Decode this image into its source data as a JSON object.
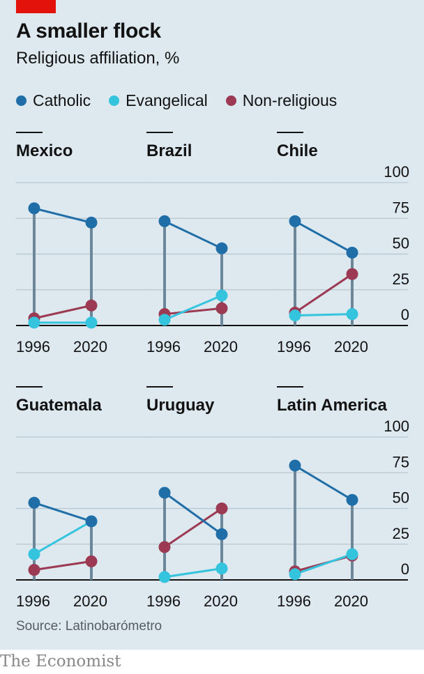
{
  "header": {
    "title": "A smaller flock",
    "subtitle": "Religious affiliation, %"
  },
  "colors": {
    "background": "#dde8ef",
    "accent_red": "#e3120b",
    "catholic": "#1f6ea8",
    "evangelical": "#35c4de",
    "non_religious": "#9b3a52",
    "stem": "#6b8799"
  },
  "legend": [
    {
      "key": "catholic",
      "label": "Catholic"
    },
    {
      "key": "evangelical",
      "label": "Evangelical"
    },
    {
      "key": "non_religious",
      "label": "Non-religious"
    }
  ],
  "chart_data": [
    {
      "type": "line",
      "title": "Mexico",
      "x": [
        "1996",
        "2020"
      ],
      "ylim": [
        0,
        100
      ],
      "series": [
        {
          "name": "Catholic",
          "values": [
            82,
            72
          ]
        },
        {
          "name": "Evangelical",
          "values": [
            2,
            2
          ]
        },
        {
          "name": "Non-religious",
          "values": [
            5,
            14
          ]
        }
      ]
    },
    {
      "type": "line",
      "title": "Brazil",
      "x": [
        "1996",
        "2020"
      ],
      "ylim": [
        0,
        100
      ],
      "series": [
        {
          "name": "Catholic",
          "values": [
            73,
            54
          ]
        },
        {
          "name": "Evangelical",
          "values": [
            4,
            21
          ]
        },
        {
          "name": "Non-religious",
          "values": [
            8,
            12
          ]
        }
      ]
    },
    {
      "type": "line",
      "title": "Chile",
      "x": [
        "1996",
        "2020"
      ],
      "ylim": [
        0,
        100
      ],
      "yticks": [
        "100",
        "75",
        "50",
        "25",
        "0"
      ],
      "series": [
        {
          "name": "Catholic",
          "values": [
            73,
            51
          ]
        },
        {
          "name": "Evangelical",
          "values": [
            7,
            8
          ]
        },
        {
          "name": "Non-religious",
          "values": [
            9,
            36
          ]
        }
      ]
    },
    {
      "type": "line",
      "title": "Guatemala",
      "x": [
        "1996",
        "2020"
      ],
      "ylim": [
        0,
        100
      ],
      "series": [
        {
          "name": "Catholic",
          "values": [
            54,
            41
          ]
        },
        {
          "name": "Evangelical",
          "values": [
            18,
            41
          ]
        },
        {
          "name": "Non-religious",
          "values": [
            7,
            13
          ]
        }
      ]
    },
    {
      "type": "line",
      "title": "Uruguay",
      "x": [
        "1996",
        "2020"
      ],
      "ylim": [
        0,
        100
      ],
      "series": [
        {
          "name": "Catholic",
          "values": [
            61,
            32
          ]
        },
        {
          "name": "Evangelical",
          "values": [
            2,
            8
          ]
        },
        {
          "name": "Non-religious",
          "values": [
            23,
            50
          ]
        }
      ]
    },
    {
      "type": "line",
      "title": "Latin America",
      "x": [
        "1996",
        "2020"
      ],
      "ylim": [
        0,
        100
      ],
      "yticks": [
        "100",
        "75",
        "50",
        "25",
        "0"
      ],
      "series": [
        {
          "name": "Catholic",
          "values": [
            80,
            56
          ]
        },
        {
          "name": "Evangelical",
          "values": [
            4,
            18
          ]
        },
        {
          "name": "Non-religious",
          "values": [
            6,
            17
          ]
        }
      ]
    }
  ],
  "footer": {
    "source": "Source: Latinobarómetro",
    "brand": "The Economist"
  }
}
